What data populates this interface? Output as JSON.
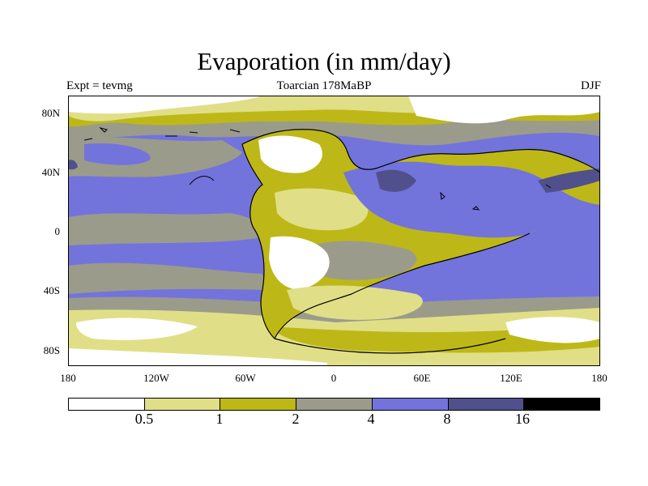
{
  "title": "Evaporation (in mm/day)",
  "subtitle_left": "Expt = tevmg",
  "subtitle_center": "Toarcian 178MaBP",
  "subtitle_right": "DJF",
  "axes": {
    "y_ticks": [
      "80N",
      "40N",
      "0",
      "40S",
      "80S"
    ],
    "x_ticks": [
      "180",
      "120W",
      "60W",
      "0",
      "60E",
      "120E",
      "180"
    ]
  },
  "colorbar": {
    "labels": [
      "0.5",
      "1",
      "2",
      "4",
      "8",
      "16"
    ],
    "colors": [
      "#ffffff",
      "#e0df87",
      "#bdb817",
      "#9b9b8c",
      "#7373dc",
      "#50508c",
      "#000000"
    ]
  },
  "chart_data": {
    "type": "heatmap",
    "title": "Evaporation (in mm/day)",
    "xlabel": "",
    "ylabel": "",
    "xlim": [
      -180,
      180
    ],
    "ylim": [
      -90,
      90
    ],
    "x_tick_values": [
      -180,
      -120,
      -60,
      0,
      60,
      120,
      180
    ],
    "y_tick_values": [
      80,
      40,
      0,
      -40,
      -80
    ],
    "levels": [
      0.5,
      1,
      2,
      4,
      8,
      16
    ],
    "projection": "cylindrical equidistant"
  }
}
